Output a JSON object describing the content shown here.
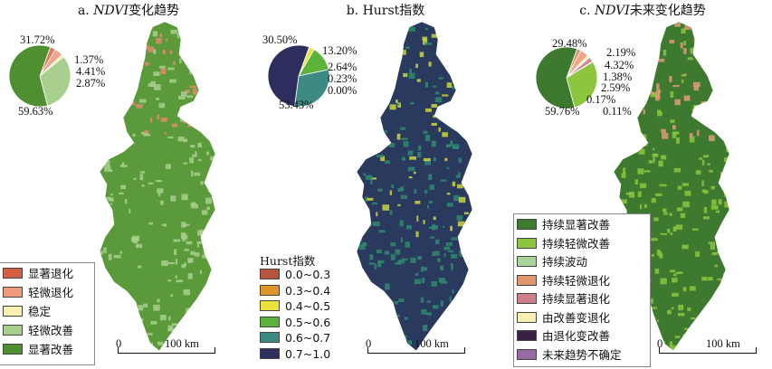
{
  "panels": [
    {
      "title_prefix": "a. ",
      "title_italic": "NDVI",
      "title_suffix": "变化趋势",
      "pie": {
        "slices": [
          {
            "value": 2.87,
            "color": "#e07a5f"
          },
          {
            "value": 4.41,
            "color": "#f2a58a"
          },
          {
            "value": 1.37,
            "color": "#f6f1b0"
          },
          {
            "value": 31.72,
            "color": "#a8cf8e"
          },
          {
            "value": 59.63,
            "color": "#4f8f2f"
          }
        ],
        "labels": [
          "31.72%",
          "1.37%",
          "4.41%",
          "2.87%",
          "59.63%"
        ]
      },
      "legend": {
        "title": "",
        "items": [
          {
            "label": "显著退化",
            "color": "#d65f46"
          },
          {
            "label": "轻微退化",
            "color": "#ef9c7e"
          },
          {
            "label": "稳定",
            "color": "#f6f1b0"
          },
          {
            "label": "轻微改善",
            "color": "#a8cf8e"
          },
          {
            "label": "显著改善",
            "color": "#4f8f2f"
          }
        ]
      },
      "scale": {
        "start": "0",
        "end": "100 km"
      },
      "map_colors": {
        "base": "#5a9a3a",
        "patch": "#a8cf8e",
        "hot": "#e08a6e"
      }
    },
    {
      "title_prefix": "b. ",
      "title_italic": "",
      "title_suffix": "Hurst指数",
      "pie": {
        "slices": [
          {
            "value": 0.0,
            "color": "#b5533c"
          },
          {
            "value": 0.23,
            "color": "#e0952a"
          },
          {
            "value": 2.64,
            "color": "#e8e23a"
          },
          {
            "value": 13.2,
            "color": "#5bb33a"
          },
          {
            "value": 30.5,
            "color": "#3d8a84"
          },
          {
            "value": 53.43,
            "color": "#2d2d5e"
          }
        ],
        "labels": [
          "30.50%",
          "13.20%",
          "2.64%",
          "0.23%",
          "0.00%",
          "53.43%"
        ]
      },
      "legend": {
        "title": "Hurst指数",
        "items": [
          {
            "label": "0.0~0.3",
            "color": "#b5533c"
          },
          {
            "label": "0.3~0.4",
            "color": "#e0952a"
          },
          {
            "label": "0.4~0.5",
            "color": "#e8e23a"
          },
          {
            "label": "0.5~0.6",
            "color": "#5bb33a"
          },
          {
            "label": "0.6~0.7",
            "color": "#3d8a84"
          },
          {
            "label": "0.7~1.0",
            "color": "#2d2d5e"
          }
        ]
      },
      "scale": {
        "start": "0",
        "end": "100 km"
      },
      "map_colors": {
        "base": "#2a3a5e",
        "patch": "#2f8a6e",
        "hot": "#c9d63a"
      }
    },
    {
      "title_prefix": "c. ",
      "title_italic": "NDVI",
      "title_suffix": "未来变化趋势",
      "pie": {
        "slices": [
          {
            "value": 2.19,
            "color": "#d9946a"
          },
          {
            "value": 4.32,
            "color": "#f0a585"
          },
          {
            "value": 1.38,
            "color": "#f6f1b0"
          },
          {
            "value": 2.59,
            "color": "#cf8a9a"
          },
          {
            "value": 0.17,
            "color": "#3a1f45"
          },
          {
            "value": 0.11,
            "color": "#9a6aa8"
          },
          {
            "value": 29.48,
            "color": "#8cc63e"
          },
          {
            "value": 59.76,
            "color": "#3d7a2f"
          }
        ],
        "labels": [
          "29.48%",
          "2.19%",
          "4.32%",
          "1.38%",
          "2.59%",
          "0.17%",
          "0.11%",
          "59.76%"
        ]
      },
      "legend": {
        "title": "",
        "items": [
          {
            "label": "持续显著改善",
            "color": "#3d7a2f"
          },
          {
            "label": "持续轻微改善",
            "color": "#8cc63e"
          },
          {
            "label": "持续波动",
            "color": "#a8d49a"
          },
          {
            "label": "持续轻微退化",
            "color": "#e0956a"
          },
          {
            "label": "持续显著退化",
            "color": "#cf7f8a"
          },
          {
            "label": "由改善变退化",
            "color": "#f6f1b0"
          },
          {
            "label": "由退化变改善",
            "color": "#3a1f45"
          },
          {
            "label": "未来趋势不确定",
            "color": "#9a6aa8"
          }
        ]
      },
      "scale": {
        "start": "0",
        "end": "100 km"
      },
      "map_colors": {
        "base": "#3d7a2f",
        "patch": "#8cc63e",
        "hot": "#e09a7a"
      }
    }
  ]
}
